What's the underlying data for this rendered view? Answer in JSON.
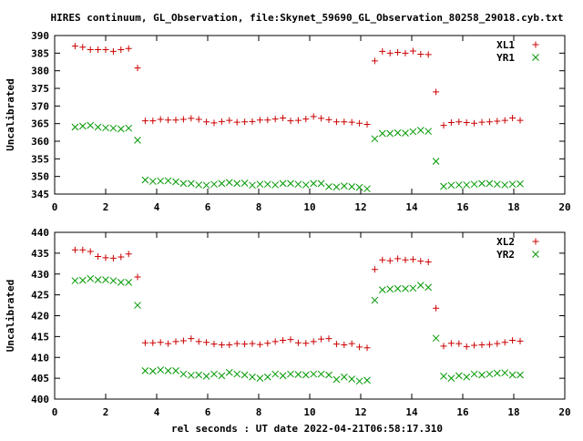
{
  "figure": {
    "title": "HIRES continuum, GL_Observation, file:Skynet_59690_GL_Observation_80258_29018.cyb.txt",
    "xlabel": "rel seconds : UT date 2022-04-21T06:58:17.310"
  },
  "chart_data": [
    {
      "type": "scatter",
      "ylabel": "Uncalibrated",
      "xlim": [
        0,
        20
      ],
      "ylim": [
        345,
        390
      ],
      "xticks": [
        0,
        2,
        4,
        6,
        8,
        10,
        12,
        14,
        16,
        18,
        20
      ],
      "yticks": [
        345,
        350,
        355,
        360,
        365,
        370,
        375,
        380,
        385,
        390
      ],
      "legend_position": "top-right",
      "grid": false,
      "x": [
        0.8,
        1.1,
        1.4,
        1.7,
        2.0,
        2.3,
        2.6,
        2.9,
        3.25,
        3.55,
        3.85,
        4.15,
        4.45,
        4.75,
        5.05,
        5.35,
        5.65,
        5.95,
        6.25,
        6.55,
        6.85,
        7.15,
        7.45,
        7.75,
        8.05,
        8.35,
        8.65,
        8.95,
        9.25,
        9.55,
        9.85,
        10.15,
        10.45,
        10.75,
        11.05,
        11.35,
        11.65,
        11.95,
        12.25,
        12.55,
        12.85,
        13.15,
        13.45,
        13.75,
        14.05,
        14.35,
        14.65,
        14.95,
        15.25,
        15.55,
        15.85,
        16.15,
        16.45,
        16.75,
        17.05,
        17.35,
        17.65,
        17.95,
        18.25
      ],
      "series": [
        {
          "name": "XL1",
          "color": "#cc0000",
          "marker": "plus",
          "values": [
            387,
            386.7,
            386,
            386,
            386,
            385.5,
            386,
            386.3,
            380.8,
            365.8,
            365.8,
            366.2,
            366,
            366,
            366.2,
            366.5,
            366.2,
            365.5,
            365.2,
            365.6,
            365.9,
            365.4,
            365.5,
            365.6,
            366,
            366,
            366.3,
            366.6,
            365.8,
            365.9,
            366.3,
            367,
            366.5,
            366.1,
            365.5,
            365.5,
            365.4,
            365.1,
            364.8,
            382.8,
            385.5,
            385,
            385.2,
            385,
            385.6,
            384.7,
            384.6,
            374,
            364.5,
            365.3,
            365.5,
            365.3,
            365.1,
            365.4,
            365.5,
            365.7,
            365.9,
            366.6,
            365.9
          ]
        },
        {
          "name": "YR1",
          "color": "#009900",
          "marker": "cross",
          "values": [
            364,
            364.3,
            364.5,
            364,
            363.8,
            363.7,
            363.5,
            363.7,
            360.3,
            349,
            348.6,
            348.7,
            348.8,
            348.5,
            348,
            348,
            347.6,
            347.5,
            347.8,
            348,
            348.3,
            348,
            348.1,
            347.5,
            347.8,
            347.8,
            347.6,
            348,
            348,
            347.8,
            347.6,
            348,
            348,
            347.1,
            347,
            347.3,
            347.1,
            346.9,
            346.5,
            360.7,
            362.2,
            362.2,
            362.4,
            362.3,
            362.7,
            363.1,
            362.8,
            354.3,
            347.2,
            347.5,
            347.6,
            347.6,
            347.8,
            348,
            348,
            347.8,
            347.6,
            347.8,
            347.9
          ]
        }
      ]
    },
    {
      "type": "scatter",
      "ylabel": "Uncalibrated",
      "xlim": [
        0,
        20
      ],
      "ylim": [
        400,
        440
      ],
      "xticks": [
        0,
        2,
        4,
        6,
        8,
        10,
        12,
        14,
        16,
        18,
        20
      ],
      "yticks": [
        400,
        405,
        410,
        415,
        420,
        425,
        430,
        435,
        440
      ],
      "legend_position": "top-right",
      "grid": false,
      "x": [
        0.8,
        1.1,
        1.4,
        1.7,
        2.0,
        2.3,
        2.6,
        2.9,
        3.25,
        3.55,
        3.85,
        4.15,
        4.45,
        4.75,
        5.05,
        5.35,
        5.65,
        5.95,
        6.25,
        6.55,
        6.85,
        7.15,
        7.45,
        7.75,
        8.05,
        8.35,
        8.65,
        8.95,
        9.25,
        9.55,
        9.85,
        10.15,
        10.45,
        10.75,
        11.05,
        11.35,
        11.65,
        11.95,
        12.25,
        12.55,
        12.85,
        13.15,
        13.45,
        13.75,
        14.05,
        14.35,
        14.65,
        14.95,
        15.25,
        15.55,
        15.85,
        16.15,
        16.45,
        16.75,
        17.05,
        17.35,
        17.65,
        17.95,
        18.25
      ],
      "series": [
        {
          "name": "XL2",
          "color": "#cc0000",
          "marker": "plus",
          "values": [
            435.8,
            435.8,
            435.4,
            434.2,
            433.9,
            433.8,
            434.1,
            434.8,
            429.3,
            413.5,
            413.5,
            413.6,
            413.3,
            413.8,
            414,
            414.5,
            413.8,
            413.6,
            413.2,
            413,
            413,
            413.3,
            413.2,
            413.3,
            413.1,
            413.4,
            413.8,
            414.1,
            414.3,
            413.5,
            413.4,
            413.8,
            414.4,
            414.5,
            413.2,
            413,
            413.3,
            412.5,
            412.3,
            431.1,
            433.4,
            433.2,
            433.7,
            433.4,
            433.5,
            433.1,
            432.9,
            421.8,
            412.7,
            413.4,
            413.3,
            412.6,
            412.9,
            413,
            413.1,
            413.3,
            413.6,
            414.1,
            413.9
          ]
        },
        {
          "name": "YR2",
          "color": "#009900",
          "marker": "cross",
          "values": [
            428.4,
            428.5,
            428.9,
            428.6,
            428.6,
            428.4,
            428,
            428,
            422.5,
            406.8,
            406.7,
            407,
            406.8,
            406.8,
            406,
            405.7,
            405.8,
            405.5,
            406,
            405.6,
            406.4,
            406,
            405.8,
            405.3,
            405,
            405.3,
            406,
            405.6,
            406,
            405.9,
            405.8,
            406,
            406,
            405.8,
            404.7,
            405.3,
            404.8,
            404.3,
            404.5,
            423.7,
            426.2,
            426.4,
            426.5,
            426.5,
            426.6,
            427.3,
            426.8,
            414.6,
            405.5,
            405,
            405.6,
            405.3,
            406,
            405.8,
            406,
            406.2,
            406.3,
            405.8,
            405.8
          ]
        }
      ]
    }
  ]
}
